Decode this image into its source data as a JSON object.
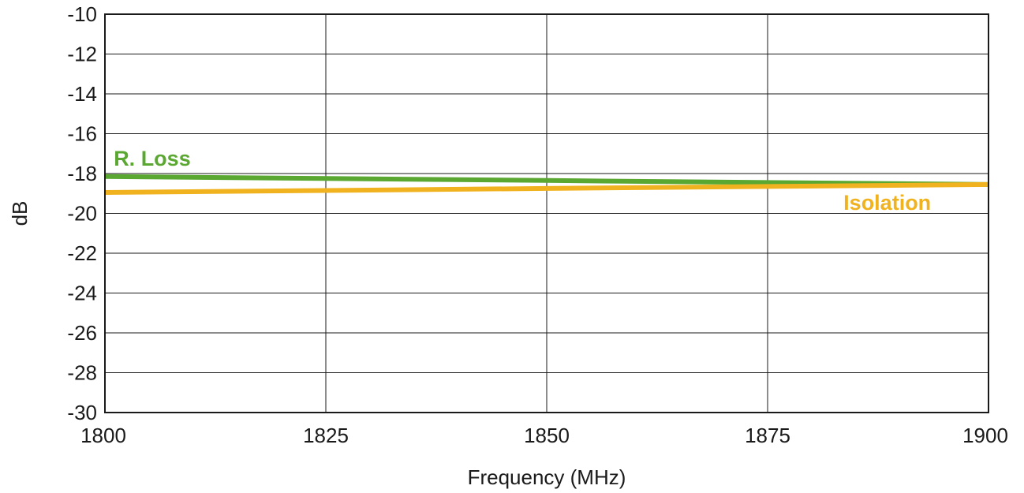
{
  "chart_data": {
    "type": "line",
    "xlabel": "Frequency (MHz)",
    "ylabel": "dB",
    "xlim": [
      1800,
      1900
    ],
    "ylim": [
      -30,
      -10
    ],
    "x_ticks": [
      "1800",
      "1825",
      "1850",
      "1875",
      "1900"
    ],
    "y_ticks": [
      "-10",
      "-12",
      "-14",
      "-16",
      "-18",
      "-20",
      "-22",
      "-24",
      "-26",
      "-28",
      "-30"
    ],
    "grid": true,
    "series": [
      {
        "name": "R. Loss",
        "color": "#5aa832",
        "x": [
          1800,
          1825,
          1850,
          1875,
          1900
        ],
        "values": [
          -18.15,
          -18.25,
          -18.35,
          -18.45,
          -18.55
        ]
      },
      {
        "name": "Isolation",
        "color": "#f0b21e",
        "x": [
          1800,
          1825,
          1850,
          1875,
          1900
        ],
        "values": [
          -18.95,
          -18.85,
          -18.75,
          -18.65,
          -18.55
        ]
      }
    ]
  }
}
